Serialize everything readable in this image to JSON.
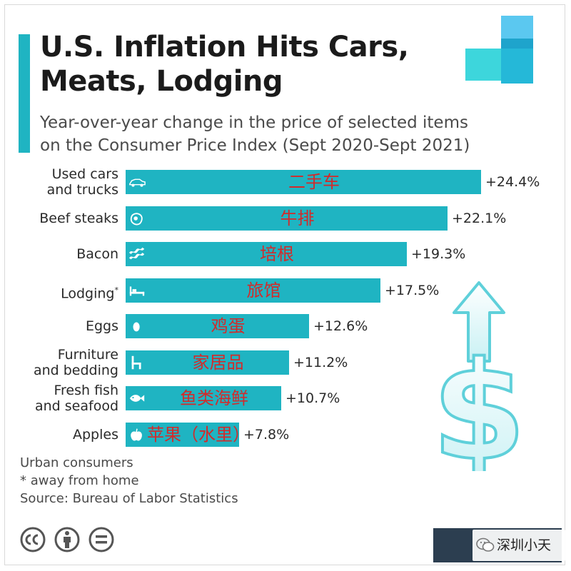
{
  "header": {
    "title_line1": "U.S. Inflation Hits Cars,",
    "title_line2": "Meats, Lodging",
    "subtitle_line1": "Year-over-year change in the price of selected items",
    "subtitle_line2": "on the Consumer Price Index (Sept 2020-Sept 2021)"
  },
  "chart_data": {
    "type": "bar",
    "orientation": "horizontal",
    "title": "U.S. Inflation Hits Cars, Meats, Lodging",
    "subtitle": "Year-over-year change in the price of selected items on the Consumer Price Index (Sept 2020-Sept 2021)",
    "xlabel": "",
    "ylabel": "",
    "unit": "%",
    "xlim": [
      0,
      24.4
    ],
    "grid": false,
    "categories": [
      {
        "line1": "Used cars",
        "line2": "and trucks",
        "sup": "",
        "cn": "二手车",
        "icon": "car-icon",
        "value": 24.4,
        "label": "+24.4%"
      },
      {
        "line1": "Beef steaks",
        "line2": "",
        "sup": "",
        "cn": "牛排",
        "icon": "steak-icon",
        "value": 22.1,
        "label": "+22.1%"
      },
      {
        "line1": "Bacon",
        "line2": "",
        "sup": "",
        "cn": "培根",
        "icon": "bacon-icon",
        "value": 19.3,
        "label": "+19.3%"
      },
      {
        "line1": "Lodging",
        "line2": "",
        "sup": "*",
        "cn": "旅馆",
        "icon": "bed-icon",
        "value": 17.5,
        "label": "+17.5%"
      },
      {
        "line1": "Eggs",
        "line2": "",
        "sup": "",
        "cn": "鸡蛋",
        "icon": "egg-icon",
        "value": 12.6,
        "label": "+12.6%"
      },
      {
        "line1": "Furniture",
        "line2": "and bedding",
        "sup": "",
        "cn": "家居品",
        "icon": "chair-icon",
        "value": 11.2,
        "label": "+11.2%"
      },
      {
        "line1": "Fresh fish",
        "line2": "and seafood",
        "sup": "",
        "cn": "鱼类海鲜",
        "icon": "fish-icon",
        "value": 10.7,
        "label": "+10.7%"
      },
      {
        "line1": "Apples",
        "line2": "",
        "sup": "",
        "cn": "苹果（水里）",
        "icon": "apple-icon",
        "value": 7.8,
        "label": "+7.8%"
      }
    ]
  },
  "footer": {
    "note1": "Urban consumers",
    "note2": "* away from home",
    "source": "Source: Bureau of Labor Statistics"
  },
  "watermark": {
    "text": "深圳小天"
  },
  "colors": {
    "accent": "#1fb4c2",
    "annotation": "#d32a2a",
    "title": "#1b1b1b"
  }
}
